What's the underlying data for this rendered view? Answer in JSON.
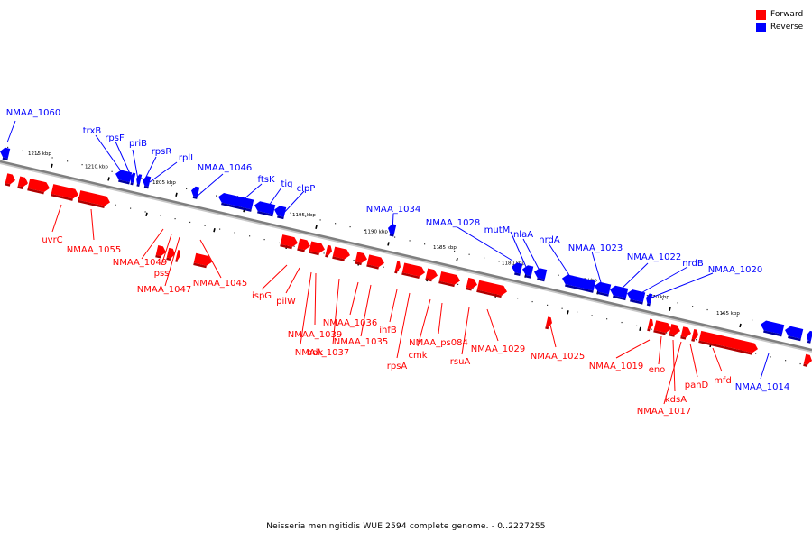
{
  "legend": [
    {
      "label": "Forward",
      "color": "#ff0000"
    },
    {
      "label": "Reverse",
      "color": "#0000ff"
    }
  ],
  "caption": "Neisseria meningitidis WUE 2594 complete genome. - 0..2227255",
  "colors": {
    "forward": "#ff0000",
    "reverse": "#0000ff",
    "backbone": "#7f7f7f"
  },
  "scale_ticks": [
    "1215 kbp",
    "1210 kbp",
    "1205 kbp",
    "1200 kbp",
    "1195 kbp",
    "1190 kbp",
    "1185 kbp",
    "1180 kbp",
    "1175 kbp",
    "1170 kbp",
    "1165 kbp"
  ],
  "forward_genes": [
    "uvrC",
    "NMAA_1055",
    "NMAA_1049",
    "pss",
    "NMAA_1047",
    "NMAA_1045",
    "ispG",
    "pilW",
    "ndk",
    "NMAA_1039",
    "NMAA_1037",
    "NMAA_1036",
    "NMAA_1035",
    "ihfB",
    "rpsA",
    "cmk",
    "NMAA_ps084",
    "rsuA",
    "NMAA_1029",
    "NMAA_1025",
    "NMAA_1019",
    "eno",
    "kdsA",
    "NMAA_1017",
    "panD",
    "mfd"
  ],
  "reverse_genes": [
    "NMAA_1060",
    "trxB",
    "rpsF",
    "priB",
    "rpsR",
    "rplI",
    "NMAA_1046",
    "ftsK",
    "tig",
    "clpP",
    "NMAA_1034",
    "NMAA_1028",
    "mutM",
    "nlaA",
    "nrdA",
    "NMAA_1023",
    "NMAA_1022",
    "nrdB",
    "NMAA_1020",
    "NMAA_1014"
  ]
}
